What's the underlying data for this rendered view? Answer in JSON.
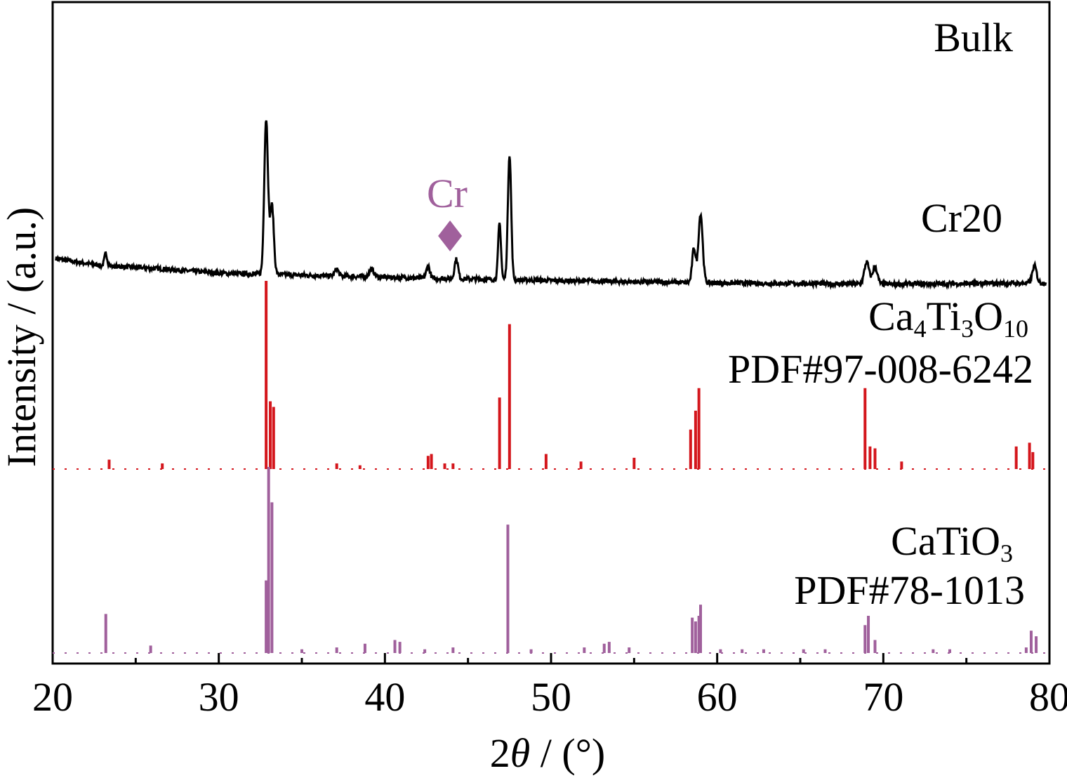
{
  "chart_data": {
    "type": "line",
    "panel_label": "Bulk",
    "xlabel_prefix": "2",
    "xlabel_theta": "θ",
    "xlabel_suffix": " / (°)",
    "ylabel": "Intensity / (a.u.)",
    "xlim": [
      20,
      80
    ],
    "x_ticks": [
      "20",
      "30",
      "40",
      "50",
      "60",
      "70",
      "80"
    ],
    "grid": false,
    "annotation": {
      "text": "Cr",
      "marker": "diamond",
      "x": 44.3,
      "color": "#A0609C"
    },
    "series": [
      {
        "name": "Cr20",
        "kind": "pattern",
        "color": "#000000",
        "baseline": 0.3,
        "background": [
          [
            20.2,
            0.35
          ],
          [
            21,
            0.34
          ],
          [
            22,
            0.33
          ],
          [
            23,
            0.32
          ],
          [
            26,
            0.31
          ],
          [
            30,
            0.29
          ],
          [
            36,
            0.28
          ],
          [
            42,
            0.27
          ],
          [
            50,
            0.26
          ],
          [
            60,
            0.25
          ],
          [
            70,
            0.245
          ],
          [
            79.8,
            0.25
          ]
        ],
        "peaks": [
          {
            "x": 23.2,
            "h": 0.05,
            "w": 0.12
          },
          {
            "x": 32.85,
            "h": 0.63,
            "w": 0.16
          },
          {
            "x": 33.2,
            "h": 0.28,
            "w": 0.16
          },
          {
            "x": 37.1,
            "h": 0.03,
            "w": 0.15
          },
          {
            "x": 39.2,
            "h": 0.03,
            "w": 0.2
          },
          {
            "x": 42.6,
            "h": 0.05,
            "w": 0.15
          },
          {
            "x": 44.3,
            "h": 0.08,
            "w": 0.15
          },
          {
            "x": 46.9,
            "h": 0.23,
            "w": 0.12
          },
          {
            "x": 47.5,
            "h": 0.51,
            "w": 0.14
          },
          {
            "x": 58.6,
            "h": 0.14,
            "w": 0.15
          },
          {
            "x": 59.0,
            "h": 0.28,
            "w": 0.18
          },
          {
            "x": 69.0,
            "h": 0.09,
            "w": 0.2
          },
          {
            "x": 69.5,
            "h": 0.07,
            "w": 0.2
          },
          {
            "x": 79.1,
            "h": 0.07,
            "w": 0.18
          }
        ]
      },
      {
        "name": "Ca₄Ti₃O₁₀",
        "label_line1_parts": [
          "Ca",
          "4",
          "Ti",
          "3",
          "O",
          "10"
        ],
        "label_line2": "PDF#97-008-6242",
        "kind": "sticks",
        "color": "#D4161C",
        "sticks": [
          [
            23.4,
            0.05
          ],
          [
            26.6,
            0.03
          ],
          [
            32.85,
            1.0
          ],
          [
            33.1,
            0.36
          ],
          [
            33.3,
            0.33
          ],
          [
            37.1,
            0.03
          ],
          [
            38.5,
            0.02
          ],
          [
            42.6,
            0.07
          ],
          [
            42.8,
            0.08
          ],
          [
            43.6,
            0.03
          ],
          [
            44.1,
            0.03
          ],
          [
            46.9,
            0.38
          ],
          [
            47.5,
            0.77
          ],
          [
            49.7,
            0.08
          ],
          [
            51.8,
            0.04
          ],
          [
            55.0,
            0.06
          ],
          [
            58.4,
            0.21
          ],
          [
            58.7,
            0.31
          ],
          [
            58.9,
            0.43
          ],
          [
            68.9,
            0.43
          ],
          [
            69.2,
            0.12
          ],
          [
            69.5,
            0.11
          ],
          [
            71.1,
            0.04
          ],
          [
            78.0,
            0.12
          ],
          [
            78.8,
            0.14
          ],
          [
            79.0,
            0.09
          ]
        ]
      },
      {
        "name": "CaTiO₃",
        "label_line1_parts": [
          "CaTiO",
          "3"
        ],
        "label_line2": "PDF#78-1013",
        "kind": "sticks",
        "color": "#A0609C",
        "sticks": [
          [
            23.2,
            0.21
          ],
          [
            25.9,
            0.04
          ],
          [
            32.85,
            0.39
          ],
          [
            33.0,
            1.0
          ],
          [
            33.2,
            0.81
          ],
          [
            35.0,
            0.02
          ],
          [
            37.1,
            0.03
          ],
          [
            38.8,
            0.05
          ],
          [
            40.6,
            0.07
          ],
          [
            40.9,
            0.06
          ],
          [
            42.4,
            0.02
          ],
          [
            44.1,
            0.03
          ],
          [
            47.4,
            0.69
          ],
          [
            48.8,
            0.02
          ],
          [
            52.0,
            0.03
          ],
          [
            53.2,
            0.05
          ],
          [
            53.5,
            0.06
          ],
          [
            54.7,
            0.03
          ],
          [
            58.5,
            0.19
          ],
          [
            58.7,
            0.17
          ],
          [
            58.9,
            0.2
          ],
          [
            59.0,
            0.26
          ],
          [
            60.2,
            0.02
          ],
          [
            61.5,
            0.02
          ],
          [
            62.8,
            0.02
          ],
          [
            65.2,
            0.02
          ],
          [
            66.5,
            0.02
          ],
          [
            68.9,
            0.15
          ],
          [
            69.1,
            0.2
          ],
          [
            69.5,
            0.07
          ],
          [
            73.0,
            0.02
          ],
          [
            74.0,
            0.02
          ],
          [
            78.6,
            0.03
          ],
          [
            78.9,
            0.12
          ],
          [
            79.2,
            0.09
          ]
        ]
      }
    ]
  }
}
